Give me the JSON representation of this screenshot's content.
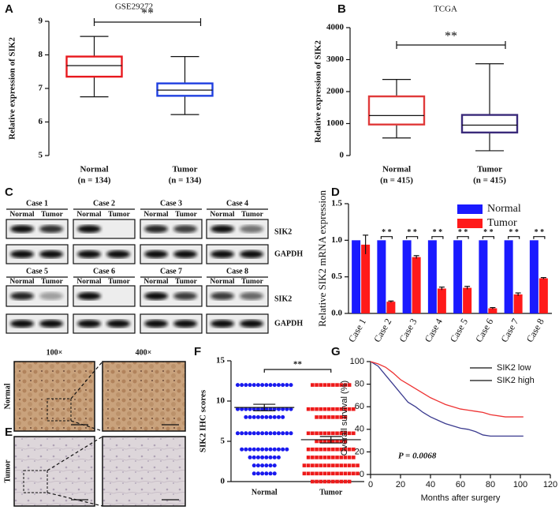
{
  "panel_labels": [
    "A",
    "B",
    "C",
    "D",
    "E",
    "F",
    "G"
  ],
  "blot": {
    "cases": [
      "Case 1",
      "Case 2",
      "Case 3",
      "Case 4",
      "Case 5",
      "Case 6",
      "Case 7",
      "Case 8"
    ],
    "lanes": [
      "Normal",
      "Tumor"
    ],
    "proteins": [
      "SIK2",
      "GAPDH"
    ]
  },
  "ihc": {
    "magnifications": [
      "100×",
      "400×"
    ],
    "rows": [
      "Normal",
      "Tumor"
    ]
  },
  "chart_data": [
    {
      "type": "box",
      "title": "GSE29272",
      "ylabel": "Relative expression of SIK2",
      "categories": [
        "Normal",
        "Tumor"
      ],
      "sample_sizes": [
        "(n = 134)",
        "(n = 134)"
      ],
      "boxes": [
        {
          "color": "#e8191e",
          "min": 6.75,
          "q1": 7.35,
          "median": 7.68,
          "q3": 7.95,
          "max": 8.55
        },
        {
          "color": "#1f3fe0",
          "min": 6.22,
          "q1": 6.78,
          "median": 6.95,
          "q3": 7.15,
          "max": 7.95
        }
      ],
      "ylim": [
        5,
        9
      ],
      "yticks": [
        5,
        6,
        7,
        8,
        9
      ],
      "significance": "**"
    },
    {
      "type": "box",
      "title": "TCGA",
      "ylabel": "Relative expression of SIK2",
      "categories": [
        "Normal",
        "Tumor"
      ],
      "sample_sizes": [
        "(n = 415)",
        "(n = 415)"
      ],
      "boxes": [
        {
          "color": "#e03a3a",
          "min": 550,
          "q1": 970,
          "median": 1250,
          "q3": 1850,
          "max": 2380
        },
        {
          "color": "#3a2a7a",
          "min": 150,
          "q1": 720,
          "median": 950,
          "q3": 1270,
          "max": 2870
        }
      ],
      "ylim": [
        0,
        4000
      ],
      "yticks": [
        0,
        1000,
        2000,
        3000,
        4000
      ],
      "significance": "**"
    },
    {
      "type": "grouped_bar",
      "ylabel": "Relative SIK2 mRNA expression",
      "categories": [
        "Case 1",
        "Case 2",
        "Case 3",
        "Case 4",
        "Case 5",
        "Case 6",
        "Case 7",
        "Case 8"
      ],
      "series": [
        {
          "name": "Normal",
          "color": "#1a1aff",
          "values": [
            1,
            1,
            1,
            1,
            1,
            1,
            1,
            1
          ]
        },
        {
          "name": "Tumor",
          "color": "#ff1a1a",
          "values": [
            0.94,
            0.16,
            0.77,
            0.34,
            0.35,
            0.07,
            0.26,
            0.48
          ],
          "errors": [
            0.13,
            0.01,
            0.02,
            0.02,
            0.02,
            0.01,
            0.02,
            0.01
          ]
        }
      ],
      "significance": [
        null,
        "* *",
        "* *",
        "* *",
        "* *",
        "* *",
        "* *",
        "* *"
      ],
      "ylim": [
        0,
        1.5
      ],
      "yticks": [
        {
          "value": 0,
          "label": "0.0"
        },
        {
          "value": 0.5,
          "label": "0.5"
        },
        {
          "value": 1,
          "label": "1.0"
        },
        {
          "value": 1.5,
          "label": "1.5"
        }
      ],
      "legend": "upper right"
    },
    {
      "type": "dot",
      "ylabel": "SIK2 IHC scores",
      "categories": [
        "Normal",
        "Tumor"
      ],
      "series": [
        {
          "name": "Normal",
          "color": "#1a1aee",
          "marker": "circle",
          "levels": [
            12,
            9,
            8,
            6,
            4,
            3,
            2,
            1
          ],
          "counts": [
            14,
            14,
            10,
            14,
            12,
            8,
            6,
            6
          ],
          "mean": 9.2,
          "sem": 0.4
        },
        {
          "name": "Tumor",
          "color": "#ee1a1a",
          "marker": "square",
          "levels": [
            12,
            9,
            8,
            6,
            5,
            4,
            3,
            2,
            1,
            0
          ],
          "counts": [
            10,
            12,
            8,
            12,
            8,
            12,
            12,
            14,
            14,
            10
          ],
          "mean": 5.2,
          "sem": 0.4
        }
      ],
      "ylim": [
        0,
        15
      ],
      "yticks": [
        0,
        5,
        10,
        15
      ],
      "significance": "**"
    },
    {
      "type": "survival",
      "xlabel": "Months after surgery",
      "ylabel": "Overall survival (%)",
      "annotation": "P = 0.0068",
      "series": [
        {
          "name": "SIK2 low",
          "color": "#3b3b8f",
          "x": [
            0,
            5,
            10,
            15,
            20,
            25,
            30,
            35,
            40,
            45,
            50,
            55,
            60,
            65,
            70,
            75,
            80,
            90,
            102
          ],
          "values": [
            100,
            96,
            88,
            80,
            72,
            64,
            60,
            55,
            51,
            48,
            45,
            43,
            41,
            40,
            38,
            35,
            34,
            34,
            34
          ]
        },
        {
          "name": "SIK2 high",
          "color": "#ee3333",
          "x": [
            0,
            5,
            10,
            15,
            20,
            25,
            30,
            35,
            40,
            45,
            50,
            55,
            60,
            65,
            70,
            75,
            80,
            90,
            102
          ],
          "values": [
            100,
            98,
            95,
            90,
            84,
            80,
            76,
            72,
            68,
            65,
            62,
            60,
            58,
            57,
            56,
            55,
            53,
            51,
            51
          ]
        }
      ],
      "xlim": [
        0,
        120
      ],
      "xticks": [
        0,
        20,
        40,
        60,
        80,
        100,
        120
      ],
      "ylim": [
        0,
        100
      ],
      "yticks": [
        0,
        20,
        40,
        60,
        80,
        100
      ],
      "legend": "upper right"
    }
  ]
}
